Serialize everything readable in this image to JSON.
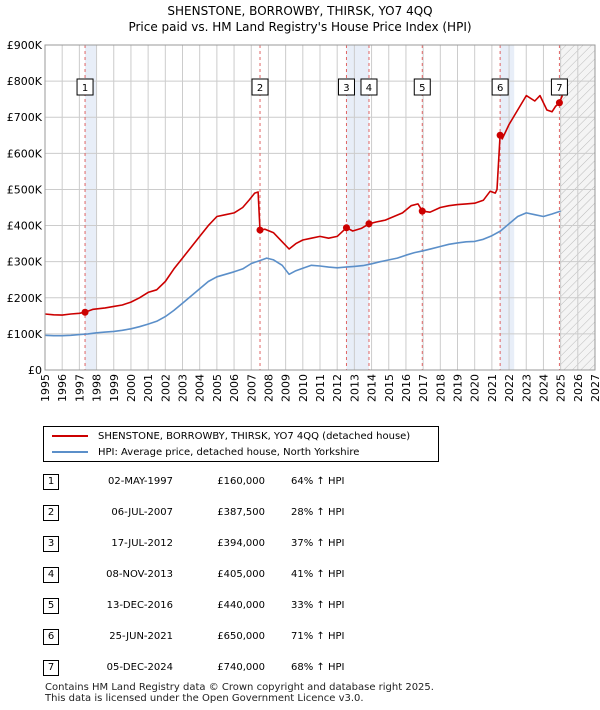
{
  "chart_data": {
    "type": "line",
    "title": "SHENSTONE, BORROWBY, THIRSK, YO7 4QQ",
    "subtitle": "Price paid vs. HM Land Registry's House Price Index (HPI)",
    "x_range": [
      1995,
      2027
    ],
    "y_range": [
      0,
      900000
    ],
    "x_ticks": [
      "1995",
      "1996",
      "1997",
      "1998",
      "1999",
      "2000",
      "2001",
      "2002",
      "2003",
      "2004",
      "2005",
      "2006",
      "2007",
      "2008",
      "2009",
      "2010",
      "2011",
      "2012",
      "2013",
      "2014",
      "2015",
      "2016",
      "2017",
      "2018",
      "2019",
      "2020",
      "2021",
      "2022",
      "2023",
      "2024",
      "2025",
      "2026",
      "2027"
    ],
    "y_ticks": [
      {
        "value": 0,
        "label": "£0"
      },
      {
        "value": 100000,
        "label": "£100K"
      },
      {
        "value": 200000,
        "label": "£200K"
      },
      {
        "value": 300000,
        "label": "£300K"
      },
      {
        "value": 400000,
        "label": "£400K"
      },
      {
        "value": 500000,
        "label": "£500K"
      },
      {
        "value": 600000,
        "label": "£600K"
      },
      {
        "value": 700000,
        "label": "£700K"
      },
      {
        "value": 800000,
        "label": "£800K"
      },
      {
        "value": 900000,
        "label": "£900K"
      }
    ],
    "grid": true,
    "forecast_start": 2025.0,
    "colors": {
      "property": "#cc0000",
      "hpi": "#5b8fc9",
      "marker_line": "#e06666",
      "highlight": "#e8eef8",
      "grid": "#cccccc"
    },
    "series": [
      {
        "name": "SHENSTONE, BORROWBY, THIRSK, YO7 4QQ (detached house)",
        "color": "#cc0000",
        "points": [
          [
            1995.0,
            155000
          ],
          [
            1995.5,
            153000
          ],
          [
            1996.0,
            152000
          ],
          [
            1996.5,
            155000
          ],
          [
            1997.0,
            157000
          ],
          [
            1997.33,
            160000
          ],
          [
            1997.8,
            168000
          ],
          [
            1998.5,
            172000
          ],
          [
            1999.0,
            176000
          ],
          [
            1999.5,
            180000
          ],
          [
            2000.0,
            188000
          ],
          [
            2000.5,
            200000
          ],
          [
            2001.0,
            215000
          ],
          [
            2001.5,
            222000
          ],
          [
            2002.0,
            245000
          ],
          [
            2002.5,
            280000
          ],
          [
            2003.0,
            310000
          ],
          [
            2003.5,
            340000
          ],
          [
            2004.0,
            370000
          ],
          [
            2004.5,
            400000
          ],
          [
            2005.0,
            425000
          ],
          [
            2005.5,
            430000
          ],
          [
            2006.0,
            435000
          ],
          [
            2006.5,
            450000
          ],
          [
            2006.9,
            472000
          ],
          [
            2007.2,
            490000
          ],
          [
            2007.4,
            493000
          ],
          [
            2007.51,
            387500
          ],
          [
            2007.8,
            390000
          ],
          [
            2008.3,
            380000
          ],
          [
            2008.8,
            355000
          ],
          [
            2009.2,
            335000
          ],
          [
            2009.6,
            350000
          ],
          [
            2010.0,
            360000
          ],
          [
            2010.5,
            365000
          ],
          [
            2011.0,
            370000
          ],
          [
            2011.5,
            365000
          ],
          [
            2012.0,
            370000
          ],
          [
            2012.54,
            394000
          ],
          [
            2012.9,
            385000
          ],
          [
            2013.4,
            392000
          ],
          [
            2013.85,
            405000
          ],
          [
            2014.3,
            410000
          ],
          [
            2014.8,
            415000
          ],
          [
            2015.3,
            425000
          ],
          [
            2015.8,
            435000
          ],
          [
            2016.3,
            455000
          ],
          [
            2016.7,
            460000
          ],
          [
            2016.95,
            440000
          ],
          [
            2017.4,
            437000
          ],
          [
            2018.0,
            450000
          ],
          [
            2018.5,
            455000
          ],
          [
            2019.0,
            458000
          ],
          [
            2019.5,
            460000
          ],
          [
            2020.0,
            462000
          ],
          [
            2020.5,
            470000
          ],
          [
            2020.9,
            495000
          ],
          [
            2021.2,
            490000
          ],
          [
            2021.3,
            500000
          ],
          [
            2021.48,
            650000
          ],
          [
            2021.6,
            640000
          ],
          [
            2022.0,
            680000
          ],
          [
            2022.5,
            720000
          ],
          [
            2023.0,
            760000
          ],
          [
            2023.5,
            745000
          ],
          [
            2023.8,
            760000
          ],
          [
            2024.2,
            720000
          ],
          [
            2024.5,
            715000
          ],
          [
            2024.7,
            730000
          ],
          [
            2024.93,
            740000
          ],
          [
            2025.1,
            760000
          ]
        ]
      },
      {
        "name": "HPI: Average price, detached house, North Yorkshire",
        "color": "#5b8fc9",
        "points": [
          [
            1995.0,
            96000
          ],
          [
            1995.5,
            95000
          ],
          [
            1996.0,
            95000
          ],
          [
            1996.5,
            96000
          ],
          [
            1997.0,
            98000
          ],
          [
            1997.5,
            100000
          ],
          [
            1998.0,
            103000
          ],
          [
            1998.5,
            105000
          ],
          [
            1999.0,
            107000
          ],
          [
            1999.5,
            110000
          ],
          [
            2000.0,
            114000
          ],
          [
            2000.5,
            120000
          ],
          [
            2001.0,
            127000
          ],
          [
            2001.5,
            135000
          ],
          [
            2002.0,
            148000
          ],
          [
            2002.5,
            165000
          ],
          [
            2003.0,
            185000
          ],
          [
            2003.5,
            205000
          ],
          [
            2004.0,
            225000
          ],
          [
            2004.5,
            245000
          ],
          [
            2005.0,
            258000
          ],
          [
            2005.5,
            265000
          ],
          [
            2006.0,
            272000
          ],
          [
            2006.5,
            280000
          ],
          [
            2007.0,
            295000
          ],
          [
            2007.5,
            303000
          ],
          [
            2007.9,
            310000
          ],
          [
            2008.3,
            305000
          ],
          [
            2008.8,
            290000
          ],
          [
            2009.2,
            265000
          ],
          [
            2009.6,
            275000
          ],
          [
            2010.0,
            282000
          ],
          [
            2010.5,
            290000
          ],
          [
            2011.0,
            288000
          ],
          [
            2011.5,
            285000
          ],
          [
            2012.0,
            283000
          ],
          [
            2012.5,
            285000
          ],
          [
            2013.0,
            287000
          ],
          [
            2013.5,
            289000
          ],
          [
            2014.0,
            294000
          ],
          [
            2014.5,
            300000
          ],
          [
            2015.0,
            305000
          ],
          [
            2015.5,
            310000
          ],
          [
            2016.0,
            318000
          ],
          [
            2016.5,
            325000
          ],
          [
            2017.0,
            330000
          ],
          [
            2017.5,
            336000
          ],
          [
            2018.0,
            342000
          ],
          [
            2018.5,
            348000
          ],
          [
            2019.0,
            352000
          ],
          [
            2019.5,
            355000
          ],
          [
            2020.0,
            356000
          ],
          [
            2020.5,
            362000
          ],
          [
            2021.0,
            372000
          ],
          [
            2021.5,
            385000
          ],
          [
            2022.0,
            405000
          ],
          [
            2022.5,
            425000
          ],
          [
            2023.0,
            435000
          ],
          [
            2023.5,
            430000
          ],
          [
            2024.0,
            425000
          ],
          [
            2024.5,
            432000
          ],
          [
            2025.0,
            440000
          ]
        ]
      }
    ],
    "transactions": [
      {
        "num": "1",
        "x": 1997.33,
        "y": 160000,
        "date": "02-MAY-1997",
        "price": "£160,000",
        "hpi": "64% ↑ HPI"
      },
      {
        "num": "2",
        "x": 2007.51,
        "y": 387500,
        "date": "06-JUL-2007",
        "price": "£387,500",
        "hpi": "28% ↑ HPI"
      },
      {
        "num": "3",
        "x": 2012.54,
        "y": 394000,
        "date": "17-JUL-2012",
        "price": "£394,000",
        "hpi": "37% ↑ HPI"
      },
      {
        "num": "4",
        "x": 2013.85,
        "y": 405000,
        "date": "08-NOV-2013",
        "price": "£405,000",
        "hpi": "41% ↑ HPI"
      },
      {
        "num": "5",
        "x": 2016.95,
        "y": 440000,
        "date": "13-DEC-2016",
        "price": "£440,000",
        "hpi": "33% ↑ HPI"
      },
      {
        "num": "6",
        "x": 2021.48,
        "y": 650000,
        "date": "25-JUN-2021",
        "price": "£650,000",
        "hpi": "71% ↑ HPI"
      },
      {
        "num": "7",
        "x": 2024.93,
        "y": 740000,
        "date": "05-DEC-2024",
        "price": "£740,000",
        "hpi": "68% ↑ HPI"
      }
    ],
    "highlight_spans": [
      [
        1997.33,
        1998.0
      ],
      [
        2012.54,
        2013.85
      ],
      [
        2021.48,
        2022.3
      ]
    ]
  },
  "legend": {
    "property_label": "SHENSTONE, BORROWBY, THIRSK, YO7 4QQ (detached house)",
    "hpi_label": "HPI: Average price, detached house, North Yorkshire"
  },
  "footer": {
    "line1": "Contains HM Land Registry data © Crown copyright and database right 2025.",
    "line2": "This data is licensed under the Open Government Licence v3.0."
  }
}
